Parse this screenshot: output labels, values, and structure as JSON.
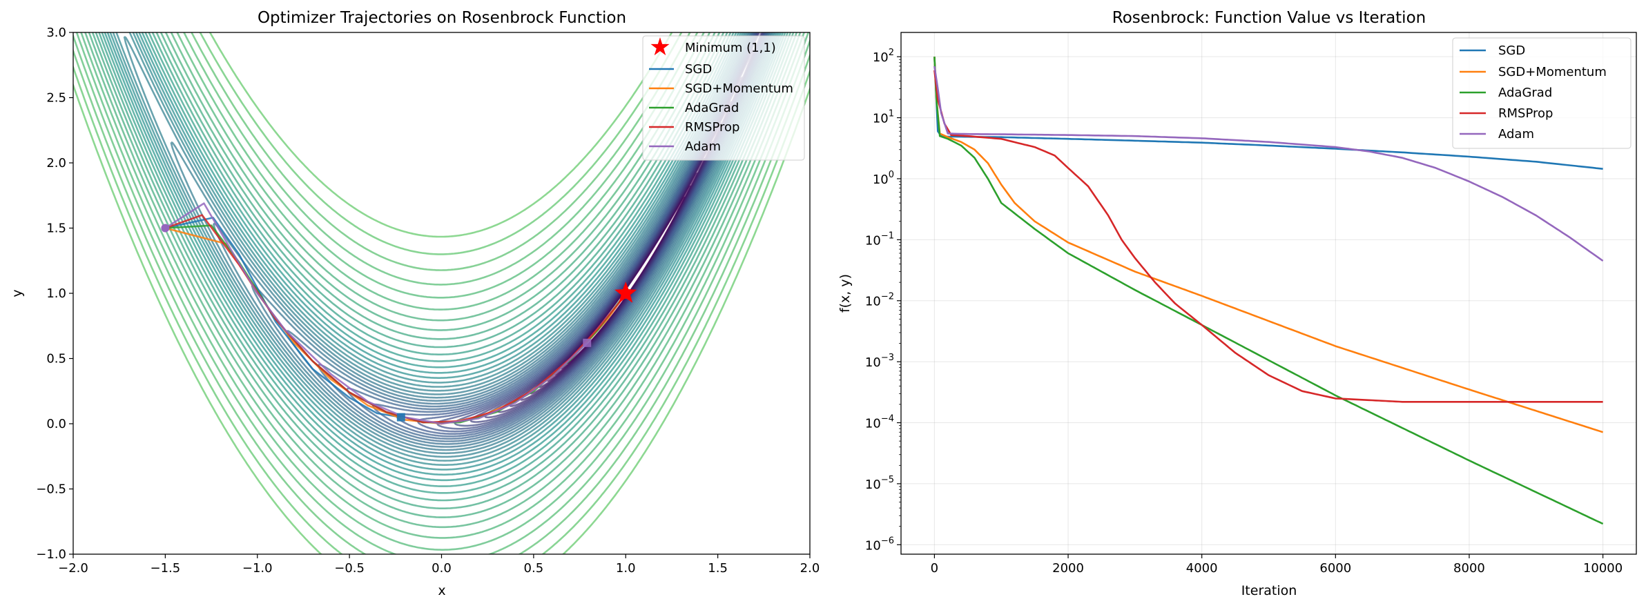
{
  "chart_data": [
    {
      "type": "line",
      "subtype": "contour",
      "title": "Optimizer Trajectories on Rosenbrock Function",
      "xlabel": "x",
      "ylabel": "y",
      "xlim": [
        -2,
        2
      ],
      "ylim": [
        -1,
        3
      ],
      "xticks": [
        -2.0,
        -1.5,
        -1.0,
        -0.5,
        0.0,
        0.5,
        1.0,
        1.5,
        2.0
      ],
      "xtick_labels": [
        "−2.0",
        "−1.5",
        "−1.0",
        "−0.5",
        "0.0",
        "0.5",
        "1.0",
        "1.5",
        "2.0"
      ],
      "yticks": [
        -1.0,
        -0.5,
        0.0,
        0.5,
        1.0,
        1.5,
        2.0,
        2.5,
        3.0
      ],
      "ytick_labels": [
        "−1.0",
        "−0.5",
        "0.0",
        "0.5",
        "1.0",
        "1.5",
        "2.0",
        "2.5",
        "3.0"
      ],
      "legend_position": "top-right",
      "legend": [
        {
          "label": "Minimum (1,1)",
          "color": "#ff0000",
          "marker": "star"
        },
        {
          "label": "SGD",
          "color": "#1f77b4"
        },
        {
          "label": "SGD+Momentum",
          "color": "#ff7f0e"
        },
        {
          "label": "AdaGrad",
          "color": "#2ca02c"
        },
        {
          "label": "RMSProp",
          "color": "#d62728"
        },
        {
          "label": "Adam",
          "color": "#9467bd"
        }
      ],
      "minimum": {
        "x": 1,
        "y": 1
      },
      "start": {
        "x": -1.5,
        "y": 1.5
      },
      "contour_colormap": "viridis_r",
      "series": [
        {
          "name": "SGD",
          "color": "#1f77b4",
          "x": [
            -1.5,
            -1.24,
            -1.1,
            -0.9,
            -0.7,
            -0.5,
            -0.35,
            -0.22
          ],
          "y": [
            1.5,
            1.58,
            1.3,
            0.78,
            0.42,
            0.2,
            0.08,
            0.05
          ]
        },
        {
          "name": "SGD+Momentum",
          "color": "#ff7f0e",
          "x": [
            -1.5,
            -1.17,
            -1.0,
            -0.8,
            -0.6,
            -0.4,
            -0.2,
            0.0,
            0.2,
            0.4,
            0.6,
            0.8,
            0.9,
            1.0
          ],
          "y": [
            1.5,
            1.38,
            1.0,
            0.62,
            0.34,
            0.14,
            0.03,
            0.0,
            0.05,
            0.17,
            0.36,
            0.64,
            0.8,
            1.0
          ]
        },
        {
          "name": "AdaGrad",
          "color": "#2ca02c",
          "x": [
            -1.5,
            -1.25,
            -1.1,
            -0.9,
            -0.7,
            -0.5,
            -0.3,
            -0.1,
            0.1,
            0.3,
            0.5,
            0.7,
            0.85,
            1.0
          ],
          "y": [
            1.5,
            1.52,
            1.24,
            0.8,
            0.48,
            0.24,
            0.09,
            0.01,
            0.01,
            0.09,
            0.25,
            0.49,
            0.72,
            1.0
          ]
        },
        {
          "name": "RMSProp",
          "color": "#d62728",
          "x": [
            -1.5,
            -1.3,
            -1.1,
            -0.9,
            -0.7,
            -0.5,
            -0.3,
            -0.1,
            0.1,
            0.3,
            0.5,
            0.7,
            0.85,
            1.0
          ],
          "y": [
            1.5,
            1.6,
            1.22,
            0.8,
            0.48,
            0.24,
            0.09,
            0.01,
            0.02,
            0.1,
            0.26,
            0.5,
            0.73,
            0.99
          ]
        },
        {
          "name": "Adam",
          "color": "#9467bd",
          "x": [
            -1.5,
            -1.29,
            -1.15,
            -1.0,
            -0.85,
            -0.6,
            -0.4,
            -0.2,
            0.0,
            0.2,
            0.4,
            0.6,
            0.79
          ],
          "y": [
            1.5,
            1.69,
            1.35,
            1.0,
            0.72,
            0.38,
            0.17,
            0.05,
            0.0,
            0.04,
            0.16,
            0.36,
            0.62
          ]
        }
      ]
    },
    {
      "type": "line",
      "title": "Rosenbrock: Function Value vs Iteration",
      "xlabel": "Iteration",
      "ylabel": "f(x, y)",
      "xlim": [
        -500,
        10500
      ],
      "ylim": [
        7e-07,
        250
      ],
      "yscale": "log",
      "grid": true,
      "xticks": [
        0,
        2000,
        4000,
        6000,
        8000,
        10000
      ],
      "xtick_labels": [
        "0",
        "2000",
        "4000",
        "6000",
        "8000",
        "10000"
      ],
      "yticks": [
        1e-06,
        1e-05,
        0.0001,
        0.001,
        0.01,
        0.1,
        1,
        10,
        100
      ],
      "ytick_exponents": [
        "−6",
        "−5",
        "−4",
        "−3",
        "−2",
        "−1",
        "0",
        "1",
        "2"
      ],
      "ytick_base": "10",
      "legend_position": "top-right",
      "series": [
        {
          "name": "SGD",
          "color": "#1f77b4",
          "x": [
            0,
            50,
            100,
            200,
            1000,
            2000,
            3000,
            4000,
            5000,
            6000,
            7000,
            8000,
            9000,
            10000
          ],
          "y": [
            100,
            6,
            5,
            4.9,
            4.8,
            4.5,
            4.2,
            3.9,
            3.5,
            3.1,
            2.7,
            2.3,
            1.9,
            1.45
          ]
        },
        {
          "name": "SGD+Momentum",
          "color": "#ff7f0e",
          "x": [
            0,
            30,
            80,
            200,
            400,
            600,
            800,
            1000,
            1200,
            1500,
            2000,
            3000,
            4000,
            6000,
            8000,
            10000
          ],
          "y": [
            100,
            20,
            5.5,
            4.8,
            4.0,
            3.0,
            1.8,
            0.8,
            0.4,
            0.2,
            0.09,
            0.03,
            0.012,
            0.0018,
            0.00035,
            7e-05
          ]
        },
        {
          "name": "AdaGrad",
          "color": "#2ca02c",
          "x": [
            0,
            30,
            80,
            200,
            400,
            600,
            800,
            1000,
            1500,
            2000,
            3000,
            4000,
            6000,
            8000,
            10000
          ],
          "y": [
            100,
            20,
            5.0,
            4.5,
            3.5,
            2.2,
            1.0,
            0.4,
            0.15,
            0.06,
            0.015,
            0.004,
            0.00028,
            2.4e-05,
            2.2e-06
          ]
        },
        {
          "name": "RMSProp",
          "color": "#d62728",
          "x": [
            0,
            50,
            150,
            250,
            500,
            1000,
            1500,
            1800,
            2000,
            2300,
            2600,
            2800,
            3000,
            3300,
            3600,
            4000,
            4500,
            5000,
            5500,
            6000,
            7000,
            8000,
            10000
          ],
          "y": [
            60,
            20,
            8,
            5.2,
            5.0,
            4.5,
            3.3,
            2.4,
            1.5,
            0.75,
            0.25,
            0.1,
            0.05,
            0.02,
            0.009,
            0.004,
            0.0014,
            0.0006,
            0.00033,
            0.00025,
            0.00022,
            0.00022,
            0.00022
          ]
        },
        {
          "name": "Adam",
          "color": "#9467bd",
          "x": [
            0,
            50,
            100,
            200,
            500,
            1000,
            2000,
            3000,
            4000,
            5000,
            6000,
            6500,
            7000,
            7500,
            8000,
            8500,
            9000,
            9500,
            10000
          ],
          "y": [
            70,
            30,
            12,
            5.5,
            5.4,
            5.35,
            5.2,
            5.0,
            4.6,
            4.0,
            3.3,
            2.8,
            2.2,
            1.5,
            0.9,
            0.5,
            0.25,
            0.11,
            0.045
          ]
        }
      ]
    }
  ]
}
